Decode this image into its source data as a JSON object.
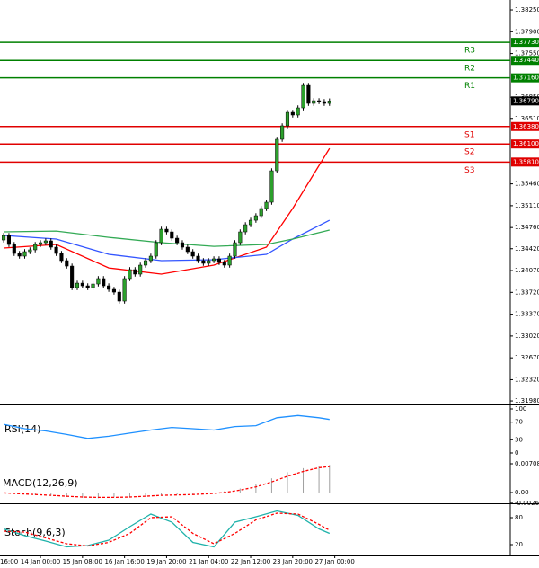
{
  "chart_data": [
    {
      "type": "candlestick",
      "open": [
        1.3456,
        1.34632,
        1.34488,
        1.34344,
        1.34301,
        1.34373,
        1.34402,
        1.34488,
        1.34517,
        1.34546,
        1.34445,
        1.34344,
        1.34229,
        1.34142,
        1.33796,
        1.33868,
        1.33825,
        1.33796,
        1.33854,
        1.33941,
        1.33825,
        1.33768,
        1.33724,
        1.3358,
        1.33941,
        1.34085,
        1.34013,
        1.34157,
        1.34229,
        1.34301,
        1.34517,
        1.34733,
        1.3469,
        1.34589,
        1.34517,
        1.34445,
        1.34373,
        1.34301,
        1.34229,
        1.34186,
        1.34229,
        1.34258,
        1.342,
        1.34157,
        1.34301,
        1.34517,
        1.3469,
        1.34805,
        1.34877,
        1.34949,
        1.35065,
        1.35166,
        1.3567,
        1.36175,
        1.36391,
        1.36607,
        1.36564,
        1.36679,
        1.37039,
        1.36751,
        1.36794,
        1.3678,
        1.36751
      ],
      "high": [
        1.34672,
        1.34672,
        1.34528,
        1.34384,
        1.34413,
        1.34442,
        1.34528,
        1.34557,
        1.34586,
        1.34586,
        1.34485,
        1.34384,
        1.34269,
        1.34182,
        1.33908,
        1.33908,
        1.33865,
        1.33894,
        1.33981,
        1.33981,
        1.33865,
        1.33808,
        1.33764,
        1.33981,
        1.34125,
        1.34125,
        1.34197,
        1.34269,
        1.34341,
        1.34557,
        1.34773,
        1.34773,
        1.3473,
        1.34629,
        1.34557,
        1.34485,
        1.34413,
        1.34341,
        1.34269,
        1.34269,
        1.34298,
        1.34298,
        1.3424,
        1.34341,
        1.34557,
        1.3473,
        1.34845,
        1.34917,
        1.34989,
        1.35105,
        1.35206,
        1.3571,
        1.36215,
        1.36431,
        1.36647,
        1.36647,
        1.36719,
        1.37079,
        1.37079,
        1.36834,
        1.36834,
        1.3682,
        1.3683
      ],
      "low": [
        1.3452,
        1.34448,
        1.34304,
        1.34261,
        1.34261,
        1.34333,
        1.34362,
        1.34448,
        1.34477,
        1.34405,
        1.34304,
        1.34189,
        1.34102,
        1.33756,
        1.33756,
        1.33785,
        1.33756,
        1.33756,
        1.33814,
        1.33785,
        1.33728,
        1.33684,
        1.3354,
        1.3354,
        1.33901,
        1.33973,
        1.33973,
        1.34117,
        1.34189,
        1.34261,
        1.34477,
        1.3465,
        1.34549,
        1.34477,
        1.34405,
        1.34333,
        1.34261,
        1.34189,
        1.34146,
        1.34146,
        1.34189,
        1.3416,
        1.34117,
        1.34117,
        1.34261,
        1.34477,
        1.3465,
        1.34765,
        1.34837,
        1.34909,
        1.35025,
        1.35126,
        1.3563,
        1.36135,
        1.36351,
        1.36524,
        1.36524,
        1.36639,
        1.36711,
        1.36711,
        1.3674,
        1.36711,
        1.36711
      ],
      "close": [
        1.34632,
        1.34488,
        1.34344,
        1.34301,
        1.34373,
        1.34402,
        1.34488,
        1.34517,
        1.34546,
        1.34445,
        1.34344,
        1.34229,
        1.34142,
        1.33796,
        1.33868,
        1.33825,
        1.33796,
        1.33854,
        1.33941,
        1.33825,
        1.33768,
        1.33724,
        1.3358,
        1.33941,
        1.34085,
        1.34013,
        1.34157,
        1.34229,
        1.34301,
        1.34517,
        1.34733,
        1.3469,
        1.34589,
        1.34517,
        1.34445,
        1.34373,
        1.34301,
        1.34229,
        1.34186,
        1.34229,
        1.34258,
        1.342,
        1.34157,
        1.34301,
        1.34517,
        1.3469,
        1.34805,
        1.34877,
        1.34949,
        1.35065,
        1.35166,
        1.3567,
        1.36175,
        1.36391,
        1.36607,
        1.36564,
        1.36679,
        1.37039,
        1.36751,
        1.36794,
        1.3678,
        1.36751,
        1.3679
      ],
      "up_color": "#2ca02c",
      "down_color": "#000000",
      "xlim": [
        -0.7,
        96.4
      ],
      "xticks": [
        {
          "value": -1,
          "label": "16:00"
        },
        {
          "value": 7,
          "label": "14 Jan 00:00"
        },
        {
          "value": 15,
          "label": "15 Jan 08:00"
        },
        {
          "value": 23,
          "label": "16 Jan 16:00"
        },
        {
          "value": 31,
          "label": "19 Jan 20:00"
        },
        {
          "value": 39,
          "label": "21 Jan 04:00"
        },
        {
          "value": 47,
          "label": "22 Jan 12:00"
        },
        {
          "value": 55,
          "label": "23 Jan 20:00"
        },
        {
          "value": 63,
          "label": "27 Jan 00:00"
        }
      ],
      "ylim": [
        1.31923,
        1.38409
      ],
      "yticks": [
        {
          "value": 1.3825,
          "label": "1.38250"
        },
        {
          "value": 1.379,
          "label": "1.37900"
        },
        {
          "value": 1.3755,
          "label": "1.37550"
        },
        {
          "value": 1.3685,
          "label": "1.36850"
        },
        {
          "value": 1.3651,
          "label": "1.36510"
        },
        {
          "value": 1.3546,
          "label": "1.35460"
        },
        {
          "value": 1.3511,
          "label": "1.35110"
        },
        {
          "value": 1.3476,
          "label": "1.34760"
        },
        {
          "value": 1.3442,
          "label": "1.34420"
        },
        {
          "value": 1.3407,
          "label": "1.34070"
        },
        {
          "value": 1.3372,
          "label": "1.33720"
        },
        {
          "value": 1.3337,
          "label": "1.33370"
        },
        {
          "value": 1.3302,
          "label": "1.33020"
        },
        {
          "value": 1.3267,
          "label": "1.32670"
        },
        {
          "value": 1.3232,
          "label": "1.32320"
        },
        {
          "value": 1.3198,
          "label": "1.31980"
        }
      ],
      "levels": [
        {
          "name": "R3",
          "value": 1.3773,
          "label": "1.37730",
          "color": "#008000"
        },
        {
          "name": "R2",
          "value": 1.3744,
          "label": "1.37440",
          "color": "#008000"
        },
        {
          "name": "R1",
          "value": 1.3716,
          "label": "1.37160",
          "color": "#008000"
        },
        {
          "name": "S1",
          "value": 1.3638,
          "label": "1.36380",
          "color": "#e00000"
        },
        {
          "name": "S2",
          "value": 1.361,
          "label": "1.36100",
          "color": "#e00000"
        },
        {
          "name": "S3",
          "value": 1.3581,
          "label": "1.35810",
          "color": "#e00000"
        }
      ],
      "current_price": {
        "value": 1.3679,
        "label": "1.36790"
      },
      "series": [
        {
          "color": "#ff0000",
          "x": [
            0,
            10,
            20,
            30,
            40,
            50,
            55,
            62
          ],
          "values": [
            1.34431,
            1.34488,
            1.34113,
            1.34013,
            1.34157,
            1.34445,
            1.35065,
            1.3603
          ]
        },
        {
          "color": "#3355ff",
          "x": [
            0,
            10,
            20,
            30,
            40,
            50,
            55,
            62
          ],
          "values": [
            1.34632,
            1.34575,
            1.3433,
            1.34229,
            1.34243,
            1.3433,
            1.34575,
            1.34877
          ]
        },
        {
          "color": "#33aa55",
          "x": [
            0,
            10,
            20,
            30,
            40,
            50,
            55,
            62
          ],
          "values": [
            1.3469,
            1.34704,
            1.34603,
            1.34517,
            1.34459,
            1.34488,
            1.34575,
            1.34719
          ]
        }
      ]
    },
    {
      "type": "line",
      "title": "RSI(14)",
      "ylim": [
        -8.2,
        106.1
      ],
      "yticks": [
        0,
        30,
        70,
        100
      ],
      "series": [
        {
          "color": "#1e90ff",
          "x": [
            0,
            4,
            8,
            12,
            16,
            20,
            24,
            28,
            32,
            36,
            40,
            44,
            48,
            52,
            56,
            60,
            62
          ],
          "values": [
            65,
            55,
            50,
            42,
            33,
            38,
            45,
            52,
            58,
            55,
            52,
            60,
            62,
            80,
            85,
            80,
            76
          ]
        }
      ]
    },
    {
      "type": "macd",
      "title": "MACD(12,26,9)",
      "ylim": [
        -0.00266,
        0.00841
      ],
      "yticks": [
        {
          "value": 0,
          "label": "0.00"
        },
        0.007082,
        -0.002633
      ],
      "bars": {
        "color": "#a0a0a0",
        "x": [
          0,
          3,
          6,
          9,
          12,
          15,
          18,
          21,
          24,
          27,
          30,
          33,
          36,
          39,
          42,
          45,
          48,
          51,
          54,
          57,
          60,
          62
        ],
        "values": [
          -0.0002,
          -0.0004,
          -0.0006,
          -0.0008,
          -0.0011,
          -0.0013,
          -0.0014,
          -0.0012,
          -0.001,
          -0.0008,
          -0.0006,
          -0.0005,
          -0.0004,
          -0.0002,
          0.0003,
          0.001,
          0.002,
          0.0035,
          0.005,
          0.006,
          0.0066,
          0.0068
        ]
      },
      "series": [
        {
          "color": "#ff0000",
          "dash": true,
          "x": [
            0,
            3,
            6,
            9,
            12,
            15,
            18,
            21,
            24,
            27,
            30,
            33,
            36,
            39,
            42,
            45,
            48,
            51,
            54,
            57,
            60,
            62
          ],
          "values": [
            -0.0001,
            -0.0003,
            -0.0005,
            -0.0007,
            -0.0009,
            -0.0011,
            -0.0012,
            -0.0012,
            -0.0011,
            -0.0009,
            -0.0007,
            -0.0006,
            -0.0005,
            -0.0003,
            0,
            0.0006,
            0.0014,
            0.0026,
            0.004,
            0.0052,
            0.0061,
            0.0064
          ]
        }
      ]
    },
    {
      "type": "line",
      "title": "Stoch(9,6,3)",
      "ylim": [
        -4,
        108
      ],
      "yticks": [
        20,
        80
      ],
      "series": [
        {
          "color": "#20b2aa",
          "x": [
            0,
            4,
            8,
            12,
            16,
            20,
            24,
            28,
            32,
            36,
            40,
            44,
            48,
            52,
            56,
            60,
            62
          ],
          "values": [
            55,
            40,
            28,
            15,
            18,
            30,
            60,
            88,
            70,
            25,
            15,
            70,
            82,
            95,
            85,
            55,
            45
          ]
        },
        {
          "color": "#ff0000",
          "dash": true,
          "x": [
            0,
            4,
            8,
            12,
            16,
            20,
            24,
            28,
            32,
            36,
            40,
            44,
            48,
            52,
            56,
            60,
            62
          ],
          "values": [
            50,
            48,
            35,
            22,
            17,
            25,
            45,
            80,
            82,
            45,
            22,
            45,
            75,
            90,
            88,
            65,
            52
          ]
        }
      ]
    }
  ]
}
